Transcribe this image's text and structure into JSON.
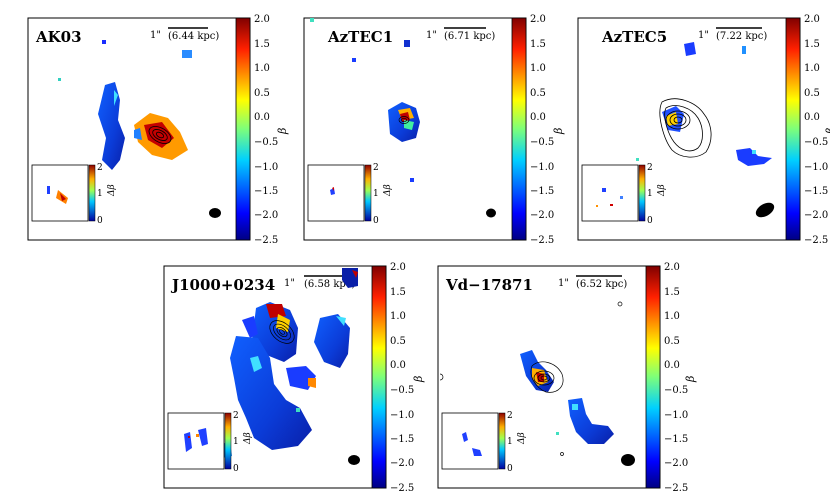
{
  "colorbar": {
    "label": "β",
    "ticks": [
      "2.0",
      "1.5",
      "1.0",
      "0.5",
      "0.0",
      "−0.5",
      "−1.0",
      "−1.5",
      "−2.0",
      "−2.5"
    ],
    "colors": [
      "#7f0000",
      "#d40000",
      "#ff5a00",
      "#ffb000",
      "#e8f000",
      "#7dff7a",
      "#16d4e0",
      "#0090ff",
      "#0030e0",
      "#000083"
    ]
  },
  "inset": {
    "label": "Δβ",
    "ticks": [
      "2",
      "1",
      "0"
    ]
  },
  "panels": [
    {
      "name": "AK03",
      "scale": "1\"",
      "kpc": "(6.44 kpc)"
    },
    {
      "name": "AzTEC1",
      "scale": "1\"",
      "kpc": "(6.71 kpc)"
    },
    {
      "name": "AzTEC5",
      "scale": "1\"",
      "kpc": "(7.22 kpc)"
    },
    {
      "name": "J1000+0234",
      "scale": "1\"",
      "kpc": "(6.58 kpc)"
    },
    {
      "name": "Vd−17871",
      "scale": "1\"",
      "kpc": "(6.52 kpc)"
    }
  ]
}
